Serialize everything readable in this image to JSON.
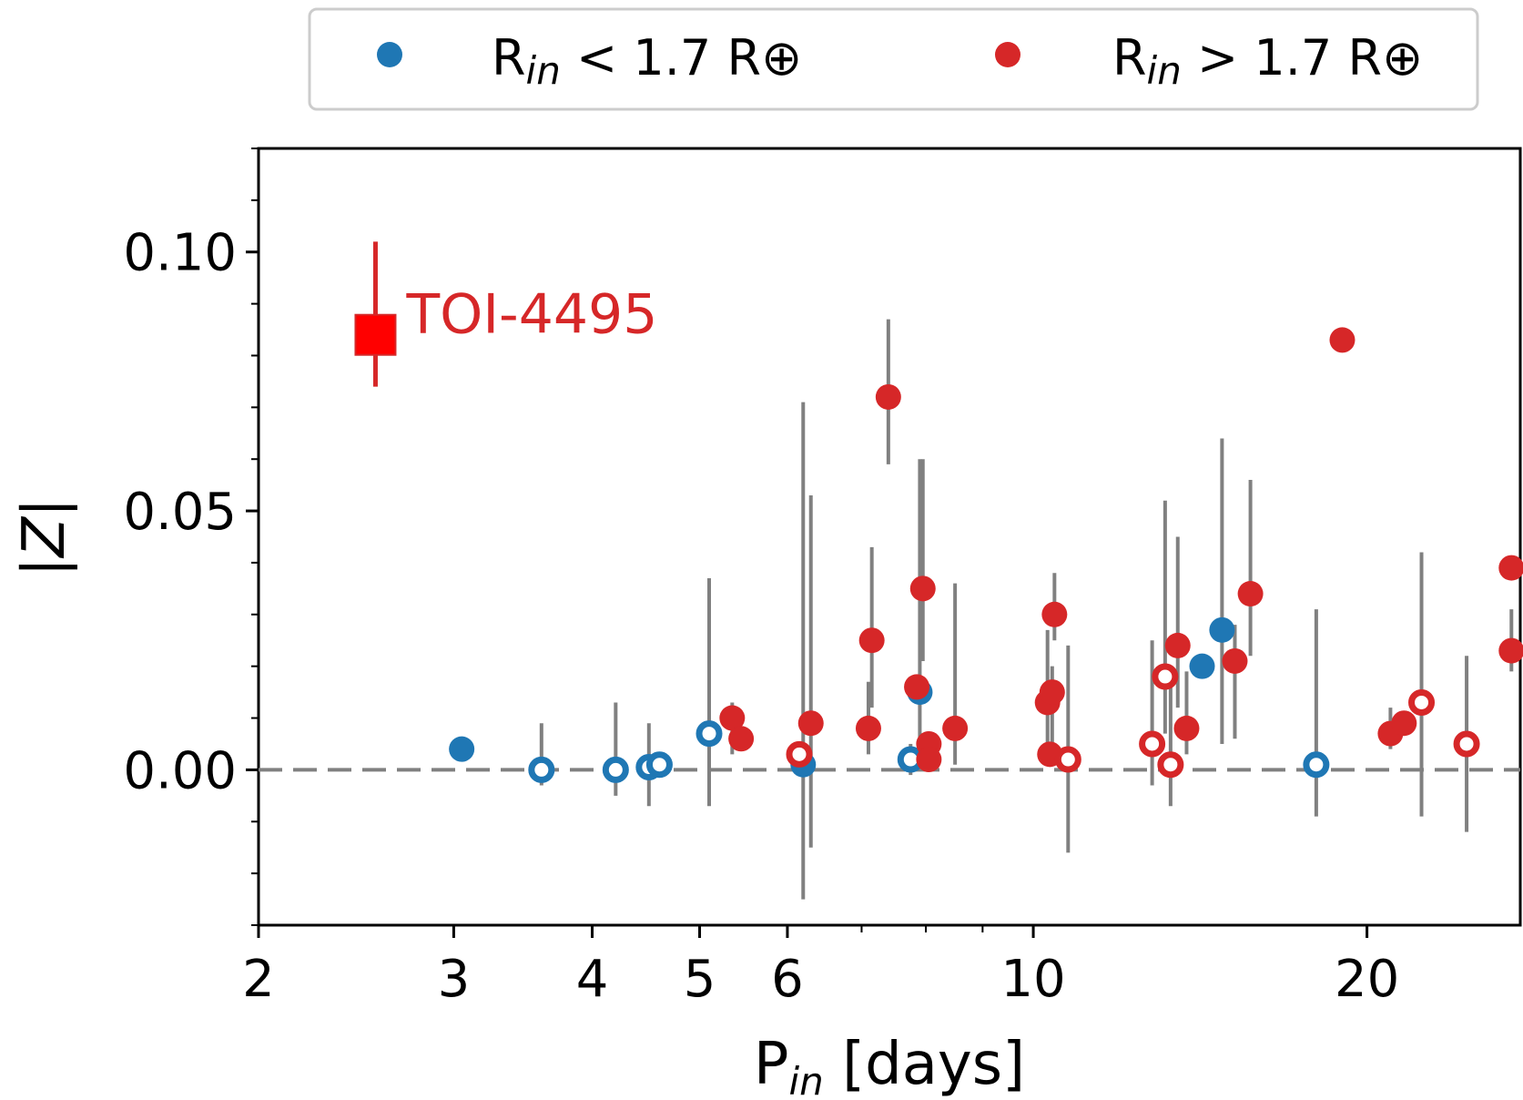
{
  "chart_data": {
    "type": "scatter",
    "xscale": "log",
    "xlim": [
      2,
      27.5
    ],
    "ylim": [
      -0.03,
      0.12
    ],
    "xticks": [
      2,
      3,
      4,
      5,
      6,
      10,
      20
    ],
    "xtick_labels": [
      "2",
      "3",
      "4",
      "5",
      "6",
      "10",
      "20"
    ],
    "yticks": [
      0.0,
      0.05,
      0.1
    ],
    "ytick_labels": [
      "0.00",
      "0.05",
      "0.10"
    ],
    "xlabel": {
      "main": "P",
      "sub": "in",
      "rest": " [days]"
    },
    "ylabel": "|Z|",
    "zero_line": 0.0,
    "colors": {
      "blue": "#1f77b4",
      "red": "#d62728",
      "errorbar": "#808080",
      "toi": "#ff0000"
    },
    "legend": {
      "position": "top",
      "entries": [
        {
          "name": "blue",
          "main": "R",
          "sub": "in",
          "rest": " < 1.7 R⊕"
        },
        {
          "name": "red",
          "main": "R",
          "sub": "in",
          "rest": " > 1.7 R⊕"
        }
      ]
    },
    "highlight": {
      "label": "TOI-4495",
      "x": 2.55,
      "y": 0.084,
      "ylow": 0.074,
      "yhigh": 0.102
    },
    "series": [
      {
        "name": "R_in < 1.7 R_earth",
        "color": "blue",
        "points": [
          {
            "x": 3.05,
            "y": 0.004,
            "filled": true
          },
          {
            "x": 3.6,
            "y": 0.0,
            "filled": false,
            "ylow": -0.003,
            "yhigh": 0.009
          },
          {
            "x": 4.2,
            "y": 0.0,
            "filled": false,
            "ylow": -0.005,
            "yhigh": 0.013
          },
          {
            "x": 4.5,
            "y": 0.0005,
            "filled": false,
            "ylow": -0.007,
            "yhigh": 0.009
          },
          {
            "x": 4.6,
            "y": 0.001,
            "filled": false
          },
          {
            "x": 5.1,
            "y": 0.007,
            "filled": false,
            "ylow": -0.007,
            "yhigh": 0.037
          },
          {
            "x": 6.2,
            "y": 0.001,
            "filled": true,
            "ylow": -0.025,
            "yhigh": 0.071
          },
          {
            "x": 7.9,
            "y": 0.015,
            "filled": true,
            "ylow": 0.006,
            "yhigh": 0.06
          },
          {
            "x": 7.75,
            "y": 0.002,
            "filled": false,
            "ylow": -0.001,
            "yhigh": 0.005
          },
          {
            "x": 14.2,
            "y": 0.02,
            "filled": true
          },
          {
            "x": 14.8,
            "y": 0.027,
            "filled": true,
            "ylow": 0.005,
            "yhigh": 0.064
          },
          {
            "x": 18.0,
            "y": 0.001,
            "filled": false,
            "ylow": -0.009,
            "yhigh": 0.031
          }
        ]
      },
      {
        "name": "R_in > 1.7 R_earth",
        "color": "red",
        "points": [
          {
            "x": 5.35,
            "y": 0.01,
            "filled": true,
            "ylow": 0.003,
            "yhigh": 0.013
          },
          {
            "x": 5.45,
            "y": 0.006,
            "filled": true
          },
          {
            "x": 6.15,
            "y": 0.003,
            "filled": false
          },
          {
            "x": 6.3,
            "y": 0.009,
            "filled": true,
            "ylow": -0.015,
            "yhigh": 0.053
          },
          {
            "x": 7.1,
            "y": 0.008,
            "filled": true,
            "ylow": 0.003,
            "yhigh": 0.017
          },
          {
            "x": 7.15,
            "y": 0.025,
            "filled": true,
            "ylow": 0.012,
            "yhigh": 0.043
          },
          {
            "x": 7.4,
            "y": 0.072,
            "filled": true,
            "ylow": 0.059,
            "yhigh": 0.087
          },
          {
            "x": 7.85,
            "y": 0.016,
            "filled": true
          },
          {
            "x": 7.95,
            "y": 0.035,
            "filled": true,
            "ylow": 0.021,
            "yhigh": 0.06
          },
          {
            "x": 8.05,
            "y": 0.005,
            "filled": true
          },
          {
            "x": 8.05,
            "y": 0.002,
            "filled": true
          },
          {
            "x": 8.5,
            "y": 0.008,
            "filled": true,
            "ylow": 0.001,
            "yhigh": 0.036
          },
          {
            "x": 10.3,
            "y": 0.013,
            "filled": true,
            "ylow": 0.004,
            "yhigh": 0.027
          },
          {
            "x": 10.4,
            "y": 0.015,
            "filled": true,
            "ylow": 0.005,
            "yhigh": 0.02
          },
          {
            "x": 10.45,
            "y": 0.03,
            "filled": true,
            "ylow": 0.025,
            "yhigh": 0.038
          },
          {
            "x": 10.35,
            "y": 0.003,
            "filled": true
          },
          {
            "x": 10.75,
            "y": 0.002,
            "filled": false,
            "ylow": -0.016,
            "yhigh": 0.024
          },
          {
            "x": 12.8,
            "y": 0.005,
            "filled": false,
            "ylow": -0.003,
            "yhigh": 0.025
          },
          {
            "x": 13.15,
            "y": 0.018,
            "filled": false,
            "ylow": 0.007,
            "yhigh": 0.052
          },
          {
            "x": 13.3,
            "y": 0.001,
            "filled": false,
            "ylow": -0.007,
            "yhigh": 0.017
          },
          {
            "x": 13.5,
            "y": 0.024,
            "filled": true,
            "ylow": 0.012,
            "yhigh": 0.045
          },
          {
            "x": 13.75,
            "y": 0.008,
            "filled": true,
            "ylow": 0.003,
            "yhigh": 0.019
          },
          {
            "x": 15.2,
            "y": 0.021,
            "filled": true,
            "ylow": 0.006,
            "yhigh": 0.028
          },
          {
            "x": 15.7,
            "y": 0.034,
            "filled": true,
            "ylow": 0.022,
            "yhigh": 0.056
          },
          {
            "x": 19.0,
            "y": 0.083,
            "filled": true
          },
          {
            "x": 21.0,
            "y": 0.007,
            "filled": true,
            "ylow": 0.004,
            "yhigh": 0.012
          },
          {
            "x": 21.6,
            "y": 0.009,
            "filled": true
          },
          {
            "x": 22.4,
            "y": 0.013,
            "filled": false,
            "ylow": -0.009,
            "yhigh": 0.042
          },
          {
            "x": 24.6,
            "y": 0.005,
            "filled": false,
            "ylow": -0.012,
            "yhigh": 0.022
          },
          {
            "x": 27.0,
            "y": 0.039,
            "filled": true
          },
          {
            "x": 27.0,
            "y": 0.023,
            "filled": true,
            "ylow": 0.019,
            "yhigh": 0.031
          }
        ]
      }
    ]
  }
}
